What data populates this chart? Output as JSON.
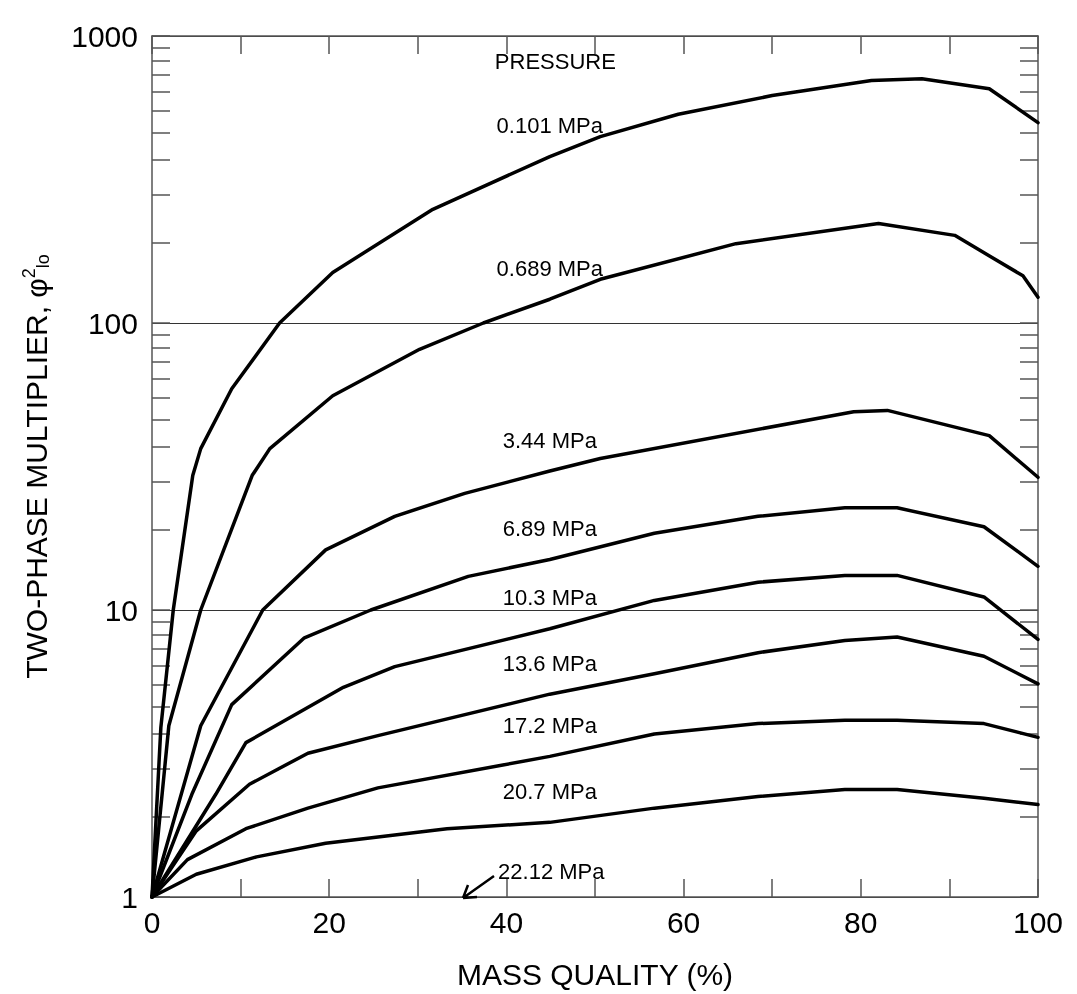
{
  "chart_data": {
    "type": "line",
    "xlabel": "MASS QUALITY (%)",
    "ylabel": "TWO-PHASE MULTIPLIER, φ$^{2}$$_{lo}$",
    "legend_title": "PRESSURE",
    "log": "y",
    "xlim": [
      0,
      100
    ],
    "ylim": [
      1,
      1000
    ],
    "xticks": [
      0,
      20,
      40,
      60,
      80,
      100
    ],
    "yticks": [
      1,
      10,
      100,
      1000
    ],
    "grid": "y",
    "legend": false,
    "marker": "none",
    "line_style": "solid",
    "annotations": [
      "22.12 MPa"
    ],
    "series": [
      {
        "name": "0.101 MPa",
        "color": "#000000",
        "x": [
          0,
          1,
          2.4,
          4.6,
          5.5,
          9,
          14.4,
          20.4,
          31.7,
          44.9,
          50.6,
          59.4,
          70,
          81.2,
          86.9,
          94.5,
          100
        ],
        "values": [
          1,
          3.9,
          10,
          29.4,
          36.5,
          59,
          100,
          150,
          249,
          380,
          446,
          534,
          620,
          700,
          710,
          655,
          499
        ]
      },
      {
        "name": "0.689 MPa",
        "color": "#000000",
        "x": [
          0,
          1.9,
          5.5,
          11.3,
          13.3,
          20.4,
          30.2,
          37.4,
          44.9,
          50.6,
          65.9,
          82,
          90.6,
          98.3,
          100
        ],
        "values": [
          1,
          3.95,
          10,
          29.4,
          36.5,
          55.8,
          81,
          100,
          121,
          142,
          189,
          222,
          202,
          146,
          123
        ]
      },
      {
        "name": "3.44 MPa",
        "color": "#000000",
        "x": [
          0,
          5.5,
          12.5,
          19.6,
          27.4,
          35.3,
          44.9,
          50.6,
          79.2,
          83,
          94.5,
          100
        ],
        "values": [
          1,
          3.95,
          10,
          16.2,
          21.2,
          25.5,
          30.5,
          33.7,
          49.1,
          49.6,
          40.5,
          29
        ]
      },
      {
        "name": "6.89 MPa",
        "color": "#000000",
        "x": [
          0,
          4.5,
          9,
          17.2,
          24.7,
          35.7,
          44.9,
          56.7,
          68.4,
          78.2,
          84.1,
          93.9,
          100
        ],
        "values": [
          1,
          2.28,
          4.68,
          8,
          10,
          13.1,
          15,
          18.5,
          21.2,
          22.7,
          22.7,
          19.5,
          14.2
        ]
      },
      {
        "name": "10.3 MPa",
        "color": "#000000",
        "x": [
          0,
          7.2,
          10.6,
          21.6,
          27.4,
          44.9,
          56.7,
          68.4,
          78.2,
          84.1,
          93.9,
          100
        ],
        "values": [
          1,
          2.28,
          3.45,
          5.38,
          6.35,
          8.6,
          10.8,
          12.5,
          13.2,
          13.2,
          11.1,
          7.9
        ]
      },
      {
        "name": "13.6 MPa",
        "color": "#000000",
        "x": [
          0,
          5,
          11,
          17.6,
          25.5,
          44.9,
          56.7,
          68.4,
          78.2,
          84.1,
          93.9,
          100
        ],
        "values": [
          1,
          1.7,
          2.47,
          3.17,
          3.65,
          5.09,
          6,
          7.1,
          7.83,
          8.05,
          6.9,
          5.53
        ]
      },
      {
        "name": "17.2 MPa",
        "color": "#000000",
        "x": [
          0,
          4,
          10.6,
          17.6,
          25.5,
          44.9,
          56.7,
          68.4,
          78.2,
          84.1,
          93.9,
          100
        ],
        "values": [
          1,
          1.35,
          1.73,
          2.04,
          2.4,
          3.09,
          3.7,
          4.02,
          4.13,
          4.13,
          4.02,
          3.6
        ]
      },
      {
        "name": "20.7 MPa",
        "color": "#000000",
        "x": [
          0,
          5,
          11.8,
          19.6,
          33.3,
          44.9,
          56.7,
          68.4,
          78.2,
          84.1,
          93.9,
          100
        ],
        "values": [
          1,
          1.2,
          1.38,
          1.54,
          1.73,
          1.82,
          2.04,
          2.24,
          2.37,
          2.37,
          2.21,
          2.1
        ]
      }
    ]
  }
}
